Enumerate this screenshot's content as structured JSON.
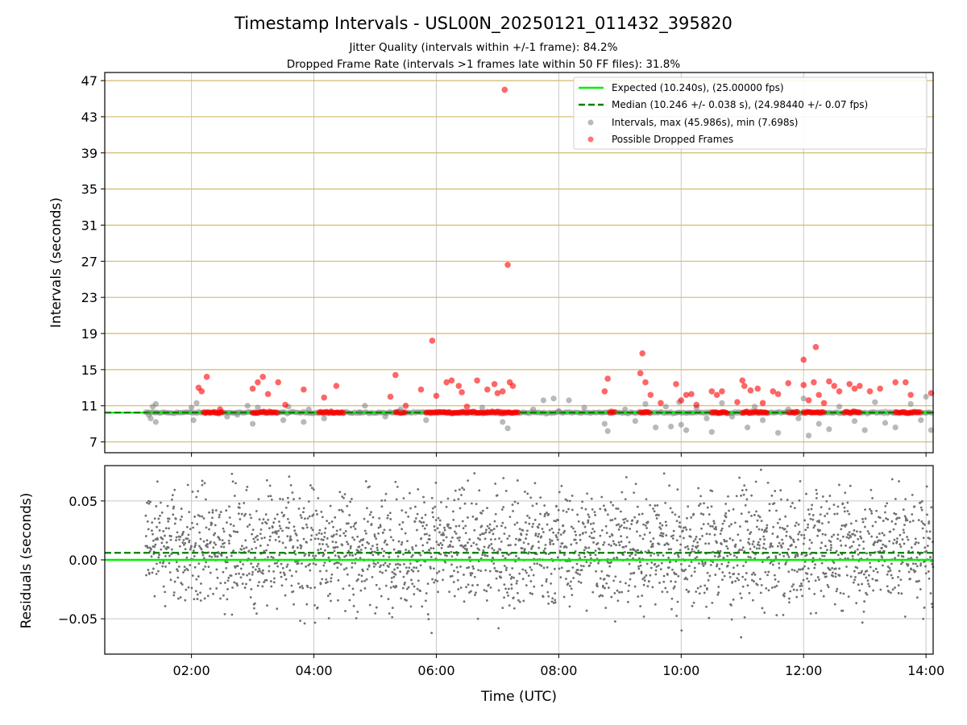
{
  "colors": {
    "expected": "#00ee00",
    "median": "#007f00",
    "intervals": "#808080",
    "dropped": "#ff0000",
    "residuals": "#707070",
    "gold_grid": "#d4b96a",
    "grid": "#c8c8c8"
  },
  "chart_data": [
    {
      "type": "scatter",
      "title": "Timestamp Intervals - USL00N_20250121_011432_395820",
      "subtitle_1": "Jitter Quality (intervals within +/-1 frame): 84.2%",
      "subtitle_2": "Dropped Frame Rate (intervals >1 frames late within 50 FF files): 31.8%",
      "xlabel": "",
      "ylabel": "Intervals (seconds)",
      "xlim": [
        "00:35",
        "14:07"
      ],
      "ylim": [
        5.8,
        47.9
      ],
      "y_ticks": [
        7,
        11,
        15,
        19,
        23,
        27,
        31,
        35,
        39,
        43,
        47
      ],
      "x_ticks": [
        "02:00",
        "04:00",
        "06:00",
        "08:00",
        "10:00",
        "12:00",
        "14:00"
      ],
      "grid": true,
      "legend_position": "top-right",
      "legend": [
        "Expected (10.240s), (25.00000 fps)",
        "Median (10.246 +/- 0.038 s), (24.98440 +/- 0.07 fps)",
        "Intervals, max (45.986s), min (7.698s)",
        "Possible Dropped Frames"
      ],
      "expected_value": 10.24,
      "median_value": 10.246,
      "dense_band": {
        "start": "01:15",
        "end": "14:07",
        "value": 10.24
      },
      "dropped_band_segments": [
        [
          "02:12",
          "02:30"
        ],
        [
          "03:00",
          "03:25"
        ],
        [
          "04:05",
          "04:30"
        ],
        [
          "05:20",
          "05:30"
        ],
        [
          "05:50",
          "07:20"
        ],
        [
          "08:50",
          "08:55"
        ],
        [
          "09:20",
          "09:30"
        ],
        [
          "10:30",
          "10:45"
        ],
        [
          "11:00",
          "11:25"
        ],
        [
          "11:45",
          "11:55"
        ],
        [
          "12:00",
          "12:20"
        ],
        [
          "12:40",
          "12:55"
        ],
        [
          "13:30",
          "13:55"
        ]
      ],
      "dropped_points": [
        [
          "02:07",
          13.0
        ],
        [
          "02:10",
          12.6
        ],
        [
          "02:15",
          14.2
        ],
        [
          "02:28",
          10.6
        ],
        [
          "03:00",
          12.9
        ],
        [
          "03:05",
          13.6
        ],
        [
          "03:10",
          14.2
        ],
        [
          "03:15",
          12.3
        ],
        [
          "03:25",
          13.6
        ],
        [
          "03:32",
          11.1
        ],
        [
          "03:50",
          12.8
        ],
        [
          "04:10",
          11.9
        ],
        [
          "04:22",
          13.2
        ],
        [
          "05:15",
          12.0
        ],
        [
          "05:20",
          14.4
        ],
        [
          "05:30",
          11.0
        ],
        [
          "05:45",
          12.8
        ],
        [
          "05:56",
          18.2
        ],
        [
          "06:00",
          12.1
        ],
        [
          "06:10",
          13.6
        ],
        [
          "06:15",
          13.8
        ],
        [
          "06:22",
          13.2
        ],
        [
          "06:25",
          12.5
        ],
        [
          "06:30",
          10.9
        ],
        [
          "06:40",
          13.8
        ],
        [
          "06:50",
          12.8
        ],
        [
          "06:57",
          13.4
        ],
        [
          "07:00",
          12.4
        ],
        [
          "07:05",
          12.6
        ],
        [
          "07:07",
          45.986
        ],
        [
          "07:10",
          26.6
        ],
        [
          "07:12",
          13.6
        ],
        [
          "07:15",
          13.2
        ],
        [
          "08:45",
          12.6
        ],
        [
          "08:48",
          14.0
        ],
        [
          "09:20",
          14.6
        ],
        [
          "09:22",
          16.8
        ],
        [
          "09:25",
          13.6
        ],
        [
          "09:30",
          12.2
        ],
        [
          "09:40",
          11.3
        ],
        [
          "09:55",
          13.4
        ],
        [
          "10:00",
          11.6
        ],
        [
          "10:05",
          12.2
        ],
        [
          "10:10",
          12.3
        ],
        [
          "10:15",
          11.1
        ],
        [
          "10:30",
          12.6
        ],
        [
          "10:35",
          12.2
        ],
        [
          "10:40",
          12.6
        ],
        [
          "10:55",
          11.4
        ],
        [
          "11:00",
          13.8
        ],
        [
          "11:02",
          13.2
        ],
        [
          "11:08",
          12.7
        ],
        [
          "11:15",
          12.9
        ],
        [
          "11:20",
          11.3
        ],
        [
          "11:30",
          12.6
        ],
        [
          "11:35",
          12.3
        ],
        [
          "11:45",
          13.5
        ],
        [
          "12:00",
          13.3
        ],
        [
          "12:00",
          16.1
        ],
        [
          "12:05",
          11.6
        ],
        [
          "12:10",
          13.6
        ],
        [
          "12:12",
          17.5
        ],
        [
          "12:15",
          12.2
        ],
        [
          "12:20",
          11.3
        ],
        [
          "12:25",
          13.7
        ],
        [
          "12:30",
          13.2
        ],
        [
          "12:35",
          12.6
        ],
        [
          "12:45",
          13.4
        ],
        [
          "12:50",
          12.9
        ],
        [
          "12:55",
          13.2
        ],
        [
          "13:05",
          12.6
        ],
        [
          "13:15",
          12.9
        ],
        [
          "13:30",
          13.6
        ],
        [
          "13:40",
          13.6
        ],
        [
          "13:45",
          12.2
        ],
        [
          "14:05",
          12.4
        ]
      ],
      "interval_points": [
        [
          "01:18",
          10.0
        ],
        [
          "01:20",
          9.6
        ],
        [
          "01:22",
          10.9
        ],
        [
          "01:25",
          11.2
        ],
        [
          "01:25",
          9.2
        ],
        [
          "02:00",
          10.8
        ],
        [
          "02:02",
          9.4
        ],
        [
          "02:05",
          11.3
        ],
        [
          "02:35",
          9.8
        ],
        [
          "02:45",
          10.0
        ],
        [
          "02:55",
          11.0
        ],
        [
          "03:00",
          9.0
        ],
        [
          "03:05",
          10.8
        ],
        [
          "03:30",
          9.4
        ],
        [
          "03:35",
          10.9
        ],
        [
          "03:50",
          9.2
        ],
        [
          "03:55",
          10.6
        ],
        [
          "04:10",
          9.6
        ],
        [
          "04:45",
          10.2
        ],
        [
          "04:50",
          11.0
        ],
        [
          "05:10",
          9.8
        ],
        [
          "05:25",
          10.6
        ],
        [
          "05:50",
          9.4
        ],
        [
          "06:45",
          10.8
        ],
        [
          "07:05",
          9.2
        ],
        [
          "07:10",
          8.5
        ],
        [
          "07:35",
          10.6
        ],
        [
          "07:45",
          11.6
        ],
        [
          "07:55",
          11.8
        ],
        [
          "08:00",
          10.4
        ],
        [
          "08:10",
          11.6
        ],
        [
          "08:25",
          10.8
        ],
        [
          "08:45",
          9.0
        ],
        [
          "08:48",
          8.2
        ],
        [
          "09:05",
          10.6
        ],
        [
          "09:15",
          9.3
        ],
        [
          "09:25",
          11.2
        ],
        [
          "09:35",
          8.6
        ],
        [
          "09:45",
          10.9
        ],
        [
          "09:50",
          8.7
        ],
        [
          "09:58",
          11.4
        ],
        [
          "10:00",
          8.9
        ],
        [
          "10:05",
          8.3
        ],
        [
          "10:15",
          10.8
        ],
        [
          "10:25",
          9.6
        ],
        [
          "10:30",
          8.1
        ],
        [
          "10:40",
          11.3
        ],
        [
          "10:50",
          9.8
        ],
        [
          "11:05",
          8.6
        ],
        [
          "11:12",
          10.9
        ],
        [
          "11:20",
          9.4
        ],
        [
          "11:35",
          8.0
        ],
        [
          "11:45",
          10.6
        ],
        [
          "11:55",
          9.6
        ],
        [
          "12:00",
          11.8
        ],
        [
          "12:05",
          7.698
        ],
        [
          "12:15",
          9.0
        ],
        [
          "12:25",
          8.4
        ],
        [
          "12:35",
          10.9
        ],
        [
          "12:50",
          9.3
        ],
        [
          "13:00",
          8.3
        ],
        [
          "13:10",
          11.4
        ],
        [
          "13:20",
          9.1
        ],
        [
          "13:30",
          8.6
        ],
        [
          "13:45",
          11.2
        ],
        [
          "13:55",
          9.4
        ],
        [
          "14:00",
          12.0
        ],
        [
          "14:05",
          8.3
        ]
      ]
    },
    {
      "type": "scatter",
      "xlabel": "Time (UTC)",
      "ylabel": "Residuals (seconds)",
      "xlim": [
        "00:35",
        "14:07"
      ],
      "ylim": [
        -0.08,
        0.08
      ],
      "y_ticks": [
        -0.05,
        0.0,
        0.05
      ],
      "y_tick_labels": [
        "−0.05",
        "0.00",
        "0.05"
      ],
      "x_ticks": [
        "02:00",
        "04:00",
        "06:00",
        "08:00",
        "10:00",
        "12:00",
        "14:00"
      ],
      "grid": true,
      "expected_value": 0.0,
      "median_value": 0.006,
      "residuals_range": {
        "start": "01:15",
        "end": "14:07",
        "center": 0.01,
        "spread": 0.025
      }
    }
  ]
}
